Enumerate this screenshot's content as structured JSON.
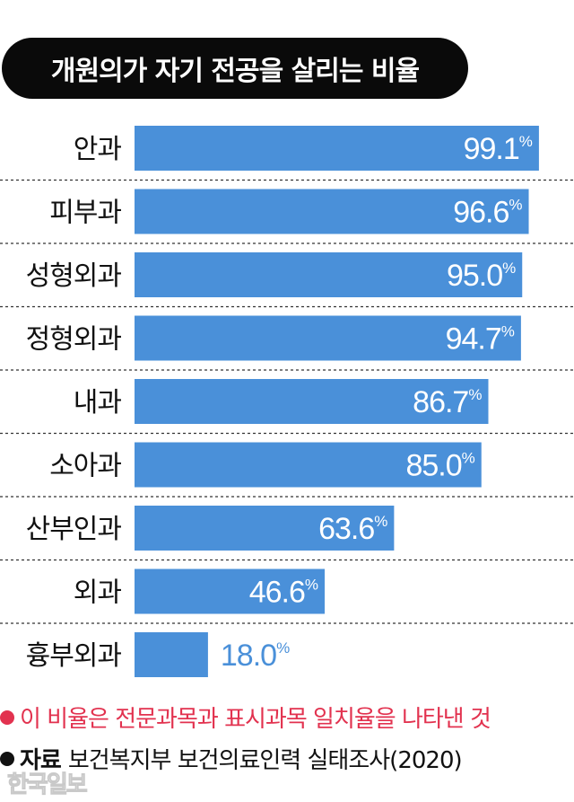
{
  "title": "개원의가 자기 전공을 살리는 비율",
  "chart_data": {
    "type": "bar",
    "orientation": "horizontal",
    "categories": [
      "안과",
      "피부과",
      "성형외과",
      "정형외과",
      "내과",
      "소아과",
      "산부인과",
      "외과",
      "흉부외과"
    ],
    "values": [
      99.1,
      96.6,
      95.0,
      94.7,
      86.7,
      85.0,
      63.6,
      46.6,
      18.0
    ],
    "value_labels": [
      "99.1",
      "96.6",
      "95.0",
      "94.7",
      "86.7",
      "85.0",
      "63.6",
      "46.6",
      "18.0"
    ],
    "unit": "%",
    "xlim": [
      0,
      100
    ],
    "bar_color": "#4a90d9",
    "grid": false
  },
  "note": "이 비율은 전문과목과 표시과목 일치율을 나타낸 것",
  "source": {
    "label": "자료",
    "text": "보건복지부 보건의료인력 실태조사(2020)"
  },
  "watermark": "한국일보",
  "colors": {
    "bar": "#4a90d9",
    "note": "#e2324f",
    "title_bg": "#0a0a0a"
  }
}
